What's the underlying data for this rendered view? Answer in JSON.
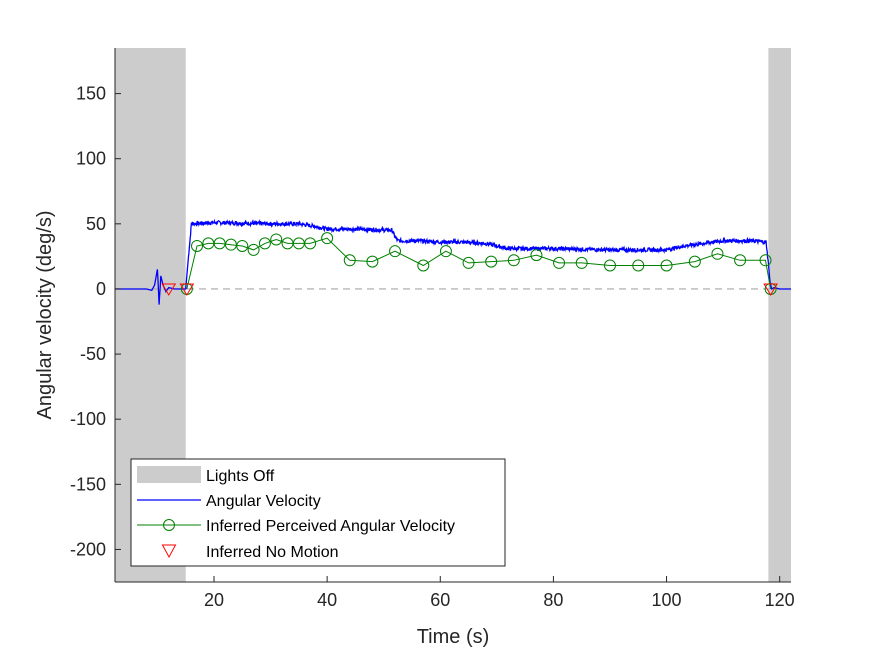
{
  "chart_data": {
    "type": "line",
    "xlabel": "Time (s)",
    "ylabel": "Angular velocity (deg/s)",
    "xlim": [
      2.5,
      122
    ],
    "ylim": [
      -225,
      185
    ],
    "x_ticks": [
      20,
      40,
      60,
      80,
      100,
      120
    ],
    "y_ticks": [
      150,
      100,
      50,
      0,
      -50,
      -100,
      -150,
      -200
    ],
    "grid": false,
    "legend_position": "bottom-left",
    "zero_reference_line": {
      "y": 0,
      "style": "dashed",
      "color": "#a6a6a6"
    },
    "lights_off_intervals": [
      [
        2.5,
        15
      ],
      [
        118,
        122
      ]
    ],
    "legend": [
      {
        "label": "Lights Off",
        "kind": "patch",
        "color": "#cccccc"
      },
      {
        "label": "Angular Velocity",
        "kind": "line",
        "color": "#0000ff"
      },
      {
        "label": "Inferred Perceived Angular Velocity",
        "kind": "line-circle",
        "color": "#008000"
      },
      {
        "label": "Inferred No Motion",
        "kind": "triangle",
        "color": "#ff0000"
      }
    ],
    "series": [
      {
        "name": "Angular Velocity",
        "color": "#0000ff",
        "x": [
          2.5,
          8,
          9,
          9.5,
          10.0,
          10.3,
          10.6,
          11,
          11.5,
          12,
          13,
          14,
          15,
          15.5,
          16,
          20,
          30,
          35,
          38,
          40,
          45,
          51.5,
          52,
          52.5,
          53,
          56,
          60,
          64,
          68,
          70,
          72,
          74,
          80,
          90,
          100,
          101,
          103,
          105,
          108,
          110,
          115,
          117.6,
          118,
          118.3,
          118.6,
          119,
          120,
          122
        ],
        "y": [
          0,
          0,
          -1,
          3,
          15,
          -12,
          10,
          3,
          -2,
          1,
          0,
          0,
          0,
          25,
          50,
          51,
          50,
          50,
          48,
          46,
          46,
          45,
          40,
          37,
          37,
          37,
          36,
          36,
          35,
          33,
          31,
          31,
          31,
          30,
          30,
          31,
          33,
          34,
          36,
          37,
          37,
          36,
          20,
          5,
          0,
          1,
          0,
          0
        ]
      },
      {
        "name": "Inferred Perceived Angular Velocity",
        "color": "#008000",
        "x": [
          15.2,
          17,
          19,
          21,
          23,
          25,
          27,
          29,
          31,
          33,
          35,
          37,
          40,
          44,
          48,
          52,
          57,
          61,
          65,
          69,
          73,
          77,
          81,
          85,
          90,
          95,
          100,
          105,
          109,
          113,
          117.5,
          118.4
        ],
        "y": [
          0,
          33,
          35,
          35,
          34,
          33,
          30,
          35,
          38,
          35,
          35,
          35,
          39,
          22,
          21,
          29,
          18,
          29,
          20,
          21,
          22,
          26,
          20,
          20,
          18,
          18,
          18,
          21,
          27,
          22,
          22,
          0
        ]
      },
      {
        "name": "Inferred No Motion",
        "color": "#ff0000",
        "x": [
          12,
          15.2,
          118.4
        ],
        "y": [
          0,
          0,
          0
        ]
      }
    ]
  }
}
